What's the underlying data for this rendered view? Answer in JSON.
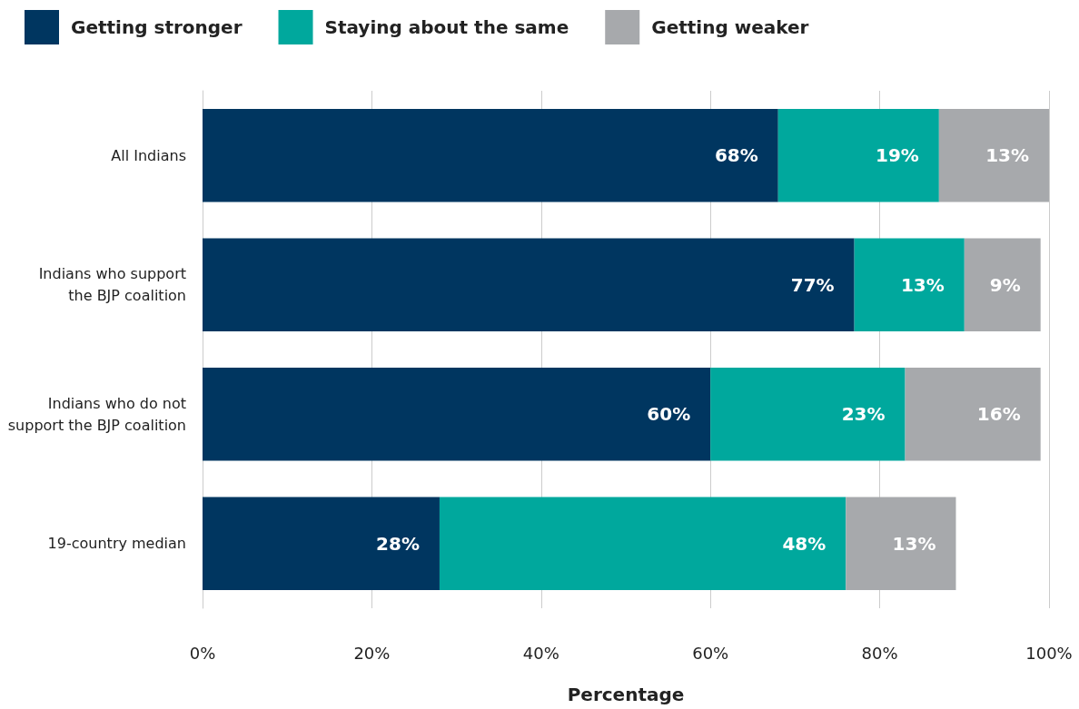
{
  "chart_data": {
    "type": "bar",
    "orientation": "horizontal",
    "stacked": true,
    "xlabel": "Percentage",
    "categories": [
      "All Indians",
      "Indians who support\nthe BJP coalition",
      "Indians who do not\nsupport the BJP coalition",
      "19-country median"
    ],
    "series": [
      {
        "name": "Getting stronger",
        "color": "#003660",
        "values": [
          68,
          77,
          60,
          28
        ],
        "value_labels": [
          "68%",
          "77%",
          "60%",
          "28%"
        ]
      },
      {
        "name": "Staying about the same",
        "color": "#00a89d",
        "values": [
          19,
          13,
          23,
          48
        ],
        "value_labels": [
          "19%",
          "13%",
          "23%",
          "48%"
        ]
      },
      {
        "name": "Getting weaker",
        "color": "#a7a9ac",
        "values": [
          13,
          9,
          16,
          13
        ],
        "value_labels": [
          "13%",
          "9%",
          "16%",
          "13%"
        ]
      }
    ],
    "xlim": [
      0,
      100
    ],
    "xticks": [
      {
        "value": 0,
        "label": "0%"
      },
      {
        "value": 20,
        "label": "20%"
      },
      {
        "value": 40,
        "label": "40%"
      },
      {
        "value": 60,
        "label": "60%"
      },
      {
        "value": 80,
        "label": "80%"
      },
      {
        "value": 100,
        "label": "100%"
      }
    ],
    "grid": "x",
    "legend": "top left"
  }
}
